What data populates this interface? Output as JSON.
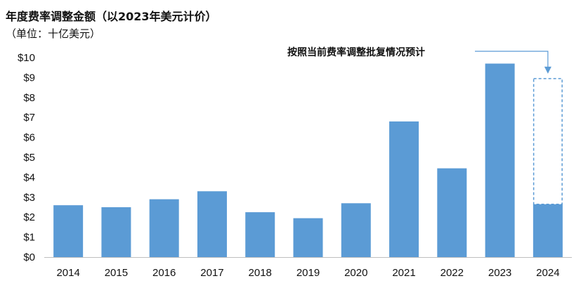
{
  "chart_data": {
    "type": "bar",
    "title": "年度费率调整金额（以2023年美元计价）",
    "subtitle": "（单位：十亿美元）",
    "categories": [
      "2014",
      "2015",
      "2016",
      "2017",
      "2018",
      "2019",
      "2020",
      "2021",
      "2022",
      "2023",
      "2024"
    ],
    "values": [
      2.6,
      2.5,
      2.9,
      3.3,
      2.25,
      1.95,
      2.7,
      6.8,
      4.45,
      9.7,
      2.65
    ],
    "projected": {
      "category": "2024",
      "value": 8.95
    },
    "y_tick_labels": [
      "$0",
      "$1",
      "$2",
      "$3",
      "$4",
      "$5",
      "$6",
      "$7",
      "$8",
      "$9",
      "$10"
    ],
    "ylim": [
      0,
      10
    ],
    "annotation": "按照当前费率调整批复情况预计",
    "grid": false,
    "legend": "none",
    "colors": {
      "bar": "#5b9bd5",
      "projected_outline": "#5b9bd5",
      "axis": "#bfbfbf"
    }
  }
}
